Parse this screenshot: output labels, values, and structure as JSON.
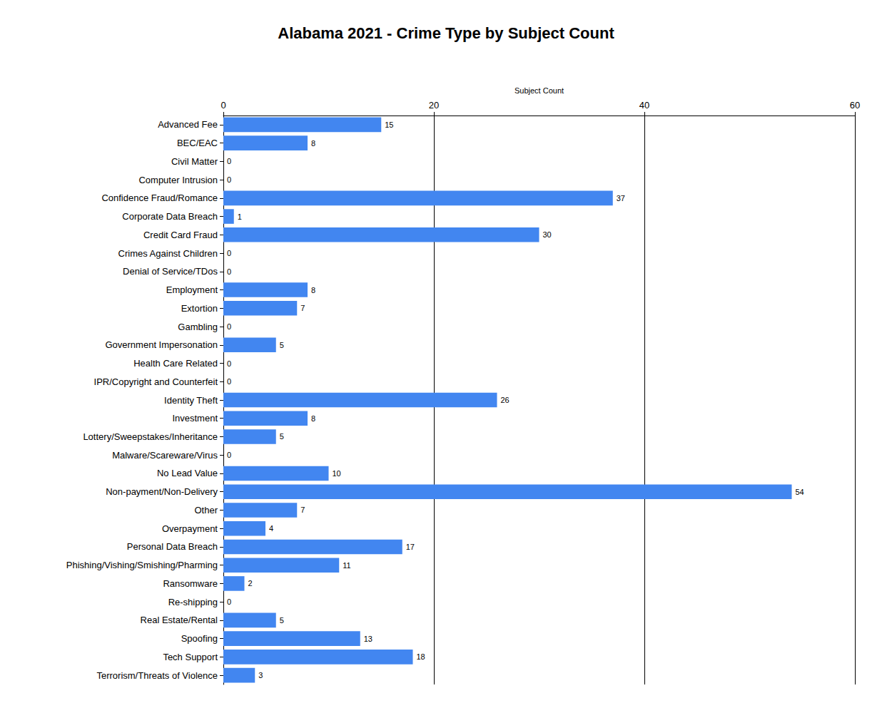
{
  "chart_data": {
    "type": "bar",
    "title": "Alabama 2021 - Crime Type by Subject Count",
    "x_label": "Subject Count",
    "orientation": "horizontal",
    "categories": [
      "Advanced Fee",
      "BEC/EAC",
      "Civil Matter",
      "Computer Intrusion",
      "Confidence Fraud/Romance",
      "Corporate Data Breach",
      "Credit Card Fraud",
      "Crimes Against Children",
      "Denial of Service/TDos",
      "Employment",
      "Extortion",
      "Gambling",
      "Government Impersonation",
      "Health Care Related",
      "IPR/Copyright and Counterfeit",
      "Identity Theft",
      "Investment",
      "Lottery/Sweepstakes/Inheritance",
      "Malware/Scareware/Virus",
      "No Lead Value",
      "Non-payment/Non-Delivery",
      "Other",
      "Overpayment",
      "Personal Data Breach",
      "Phishing/Vishing/Smishing/Pharming",
      "Ransomware",
      "Re-shipping",
      "Real Estate/Rental",
      "Spoofing",
      "Tech Support",
      "Terrorism/Threats of Violence"
    ],
    "values": [
      15,
      8,
      0,
      0,
      37,
      1,
      30,
      0,
      0,
      8,
      7,
      0,
      5,
      0,
      0,
      26,
      8,
      5,
      0,
      10,
      54,
      7,
      4,
      17,
      11,
      2,
      0,
      5,
      13,
      18,
      3
    ],
    "color": "#4286f0",
    "xlim": [
      0,
      60
    ],
    "xticks": [
      0,
      20,
      40,
      60
    ],
    "grid": true,
    "data_labels": true
  }
}
